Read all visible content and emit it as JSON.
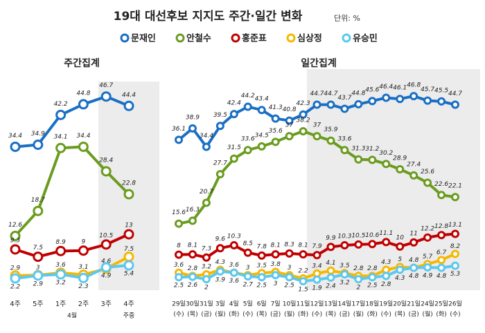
{
  "title": "19대 대선후보 지지도 주간·일간 변화",
  "unit": "단위: %",
  "chart_data": [
    {
      "type": "line",
      "subtitle": "주간집계",
      "categories": [
        "4주",
        "5주",
        "1주",
        "2주",
        "3주",
        "4주"
      ],
      "sublabels": [
        "4월",
        "주중"
      ],
      "ylim": [
        0,
        60
      ],
      "series": [
        {
          "name": "문재인",
          "color": "#1a6fc4",
          "values": [
            34.4,
            34.9,
            42.2,
            44.8,
            46.7,
            44.4
          ]
        },
        {
          "name": "안철수",
          "color": "#6a9c1f",
          "values": [
            12.6,
            18.7,
            34.1,
            34.4,
            28.4,
            22.8
          ]
        },
        {
          "name": "홍준표",
          "color": "#c00000",
          "values": [
            9.3,
            7.5,
            8.9,
            9.0,
            10.5,
            13.0
          ]
        },
        {
          "name": "심상정",
          "color": "#f5b800",
          "values": [
            2.9,
            3.0,
            3.6,
            3.1,
            4.6,
            7.5
          ]
        },
        {
          "name": "유승민",
          "color": "#5bc8f0",
          "values": [
            2.2,
            2.9,
            3.2,
            2.3,
            4.9,
            5.4
          ]
        }
      ]
    },
    {
      "type": "line",
      "subtitle": "일간집계",
      "categories": [
        "29일",
        "30일",
        "31일",
        "3일",
        "4일",
        "5일",
        "6일",
        "7일",
        "10일",
        "11일",
        "12일",
        "13일",
        "14일",
        "17일",
        "18일",
        "19일",
        "20일",
        "21일",
        "24일",
        "25일",
        "26일"
      ],
      "weekdays": [
        "(수)",
        "(목)",
        "(금)",
        "(월)",
        "(화)",
        "(수)",
        "(목)",
        "(금)",
        "(월)",
        "(화)",
        "(수)",
        "(목)",
        "(금)",
        "(월)",
        "(화)",
        "(수)",
        "(목)",
        "(금)",
        "(월)",
        "(화)",
        "(수)"
      ],
      "ylim": [
        0,
        60
      ],
      "series": [
        {
          "name": "문재인",
          "color": "#1a6fc4",
          "values": [
            36.1,
            38.9,
            34.4,
            39.5,
            42.4,
            44.2,
            43.4,
            41.3,
            40.8,
            42.3,
            44.7,
            44.7,
            43.7,
            44.8,
            45.6,
            46.4,
            46.1,
            46.8,
            45.7,
            45.5,
            44.7
          ]
        },
        {
          "name": "안철수",
          "color": "#6a9c1f",
          "values": [
            15.6,
            16.3,
            20.7,
            27.7,
            31.5,
            33.6,
            34.5,
            35.6,
            37.0,
            38.2,
            37.0,
            35.9,
            33.6,
            31.3,
            31.2,
            30.2,
            28.9,
            27.4,
            25.6,
            22.6,
            22.1
          ]
        },
        {
          "name": "홍준표",
          "color": "#c00000",
          "values": [
            8.0,
            8.1,
            7.3,
            9.6,
            10.3,
            8.5,
            7.8,
            8.1,
            8.3,
            8.1,
            7.9,
            9.9,
            10.3,
            10.5,
            10.6,
            11.1,
            10.0,
            11.0,
            12.2,
            12.8,
            13.1
          ]
        },
        {
          "name": "심상정",
          "color": "#f5b800",
          "values": [
            3.6,
            2.8,
            3.2,
            4.3,
            3.6,
            3.0,
            3.5,
            3.8,
            3.0,
            2.2,
            3.4,
            4.1,
            3.5,
            2.8,
            2.8,
            4.3,
            5.0,
            4.8,
            5.7,
            6.7,
            8.2
          ]
        },
        {
          "name": "유승민",
          "color": "#5bc8f0",
          "values": [
            2.5,
            2.6,
            2.0,
            3.9,
            3.6,
            2.7,
            2.5,
            3.0,
            2.5,
            1.5,
            1.9,
            2.4,
            3.2,
            2.0,
            2.5,
            2.8,
            4.3,
            4.8,
            4.9,
            4.8,
            5.3
          ]
        }
      ]
    }
  ]
}
